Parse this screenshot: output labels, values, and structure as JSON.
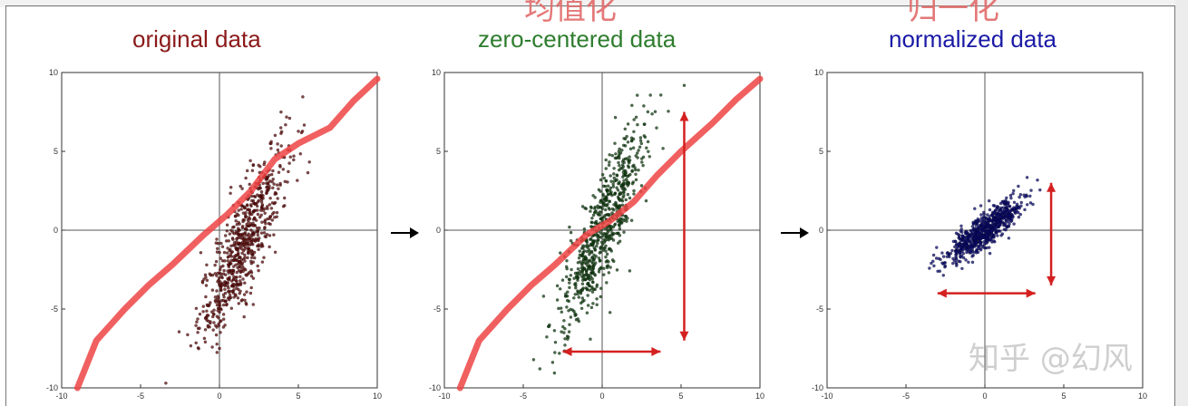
{
  "header_cjk": [
    "均值化",
    "归一化"
  ],
  "watermark": "知乎 @幻风",
  "chart_data": [
    {
      "type": "scatter",
      "title": "original data",
      "title_color": "#8b1a1a",
      "xlim": [
        -10,
        10
      ],
      "ylim": [
        -10,
        10
      ],
      "xticks": [
        -10,
        -5,
        0,
        5,
        10
      ],
      "yticks": [
        -10,
        -5,
        0,
        5,
        10
      ],
      "point_color": "#5a0a0a",
      "cloud": {
        "center": [
          1.5,
          -0.8
        ],
        "spread": [
          1.4,
          3.2
        ],
        "corr": 0.85,
        "count": 700
      },
      "curve": [
        [
          -9.0,
          -10
        ],
        [
          -7.8,
          -7
        ],
        [
          -6.0,
          -5
        ],
        [
          -4.5,
          -3.5
        ],
        [
          -3.0,
          -2.2
        ],
        [
          -1.0,
          -0.3
        ],
        [
          0.5,
          1.0
        ],
        [
          2.0,
          2.5
        ],
        [
          3.5,
          4.5
        ],
        [
          5.0,
          5.5
        ],
        [
          7.0,
          6.5
        ],
        [
          8.5,
          8.2
        ],
        [
          10,
          9.6
        ]
      ],
      "curve_color": "#ee4444",
      "arrows": []
    },
    {
      "type": "scatter",
      "title": "zero-centered data",
      "title_color": "#2e7d2e",
      "xlim": [
        -10,
        10
      ],
      "ylim": [
        -10,
        10
      ],
      "xticks": [
        -10,
        -5,
        0,
        5,
        10
      ],
      "yticks": [
        -10,
        -5,
        0,
        5,
        10
      ],
      "point_color": "#0f3b0f",
      "cloud": {
        "center": [
          0,
          0
        ],
        "spread": [
          1.4,
          3.2
        ],
        "corr": 0.85,
        "count": 700
      },
      "curve": [
        [
          -9.0,
          -10
        ],
        [
          -7.8,
          -7
        ],
        [
          -6.0,
          -5
        ],
        [
          -4.5,
          -3.5
        ],
        [
          -3.0,
          -2.2
        ],
        [
          -1.0,
          -0.3
        ],
        [
          0.5,
          0.6
        ],
        [
          2.0,
          1.8
        ],
        [
          3.5,
          3.5
        ],
        [
          5.0,
          5.0
        ],
        [
          7.0,
          6.8
        ],
        [
          8.5,
          8.3
        ],
        [
          10,
          9.6
        ]
      ],
      "curve_color": "#ee4444",
      "arrows": [
        {
          "from": [
            -2.5,
            -7.7
          ],
          "to": [
            3.7,
            -7.7
          ]
        },
        {
          "from": [
            5.2,
            7.5
          ],
          "to": [
            5.2,
            -7.0
          ]
        }
      ]
    },
    {
      "type": "scatter",
      "title": "normalized data",
      "title_color": "#1a1aa6",
      "xlim": [
        -10,
        10
      ],
      "ylim": [
        -10,
        10
      ],
      "xticks": [
        -10,
        -5,
        0,
        5,
        10
      ],
      "yticks": [
        -10,
        -5,
        0,
        5,
        10
      ],
      "point_color": "#0a0a6a",
      "cloud": {
        "center": [
          0,
          0
        ],
        "spread": [
          1.2,
          1.0
        ],
        "corr": 0.85,
        "count": 700
      },
      "curve": [],
      "curve_color": "#ee4444",
      "arrows": [
        {
          "from": [
            -3.0,
            -4.0
          ],
          "to": [
            3.2,
            -4.0
          ]
        },
        {
          "from": [
            4.2,
            3.0
          ],
          "to": [
            4.2,
            -3.5
          ]
        }
      ]
    }
  ]
}
